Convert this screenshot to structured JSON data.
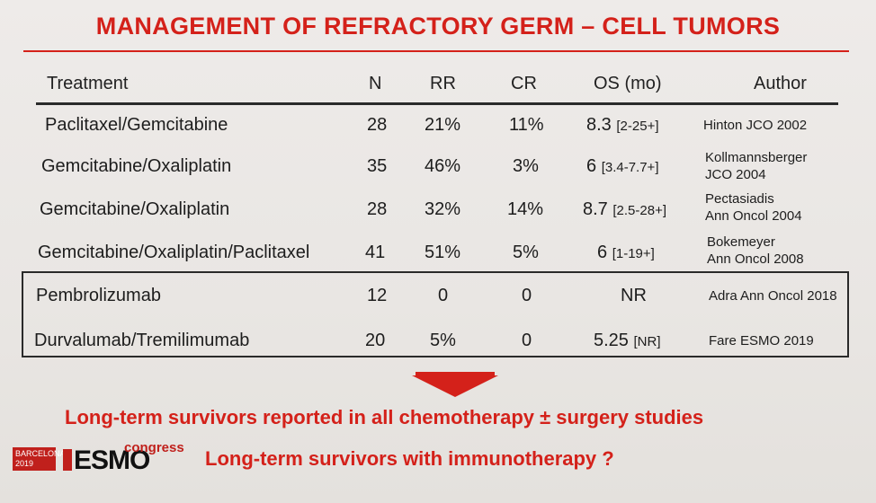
{
  "title": "MANAGEMENT OF REFRACTORY GERM – CELL TUMORS",
  "columns": {
    "treatment": "Treatment",
    "n": "N",
    "rr": "RR",
    "cr": "CR",
    "os": "OS (mo)",
    "author": "Author"
  },
  "rows": [
    {
      "treatment": "Paclitaxel/Gemcitabine",
      "n": "28",
      "rr": "21%",
      "cr": "11%",
      "os": "8.3",
      "os_range": "[2-25+]",
      "author_line1": "Hinton JCO 2002",
      "author_line2": ""
    },
    {
      "treatment": "Gemcitabine/Oxaliplatin",
      "n": "35",
      "rr": "46%",
      "cr": "3%",
      "os": "6",
      "os_range": "[3.4-7.7+]",
      "author_line1": "Kollmannsberger",
      "author_line2": "JCO 2004"
    },
    {
      "treatment": "Gemcitabine/Oxaliplatin",
      "n": "28",
      "rr": "32%",
      "cr": "14%",
      "os": "8.7",
      "os_range": "[2.5-28+]",
      "author_line1": "Pectasiadis",
      "author_line2": "Ann Oncol 2004"
    },
    {
      "treatment": "Gemcitabine/Oxaliplatin/Paclitaxel",
      "n": "41",
      "rr": "51%",
      "cr": "5%",
      "os": "6",
      "os_range": "[1-19+]",
      "author_line1": "Bokemeyer",
      "author_line2": "Ann Oncol 2008"
    },
    {
      "treatment": "Pembrolizumab",
      "n": "12",
      "rr": "0",
      "cr": "0",
      "os": "NR",
      "os_range": "",
      "author_line1": "Adra Ann Oncol 2018",
      "author_line2": ""
    },
    {
      "treatment": "Durvalumab/Tremilimumab",
      "n": "20",
      "rr": "5%",
      "cr": "0",
      "os": "5.25",
      "os_range": "[NR]",
      "author_line1": "Fare ESMO 2019",
      "author_line2": ""
    }
  ],
  "conclusions": {
    "line1": "Long-term survivors reported in all chemotherapy ± surgery studies",
    "line2": "Long-term survivors with immunotherapy ?"
  },
  "logo": {
    "city": "BARCELONA",
    "year": "2019",
    "brand": "ESMO",
    "suffix": "congress"
  },
  "colors": {
    "accent": "#d4211a",
    "text": "#1d1d1d",
    "background": "#ece9e6"
  },
  "icons": {
    "arrow": "down-arrow-icon"
  }
}
